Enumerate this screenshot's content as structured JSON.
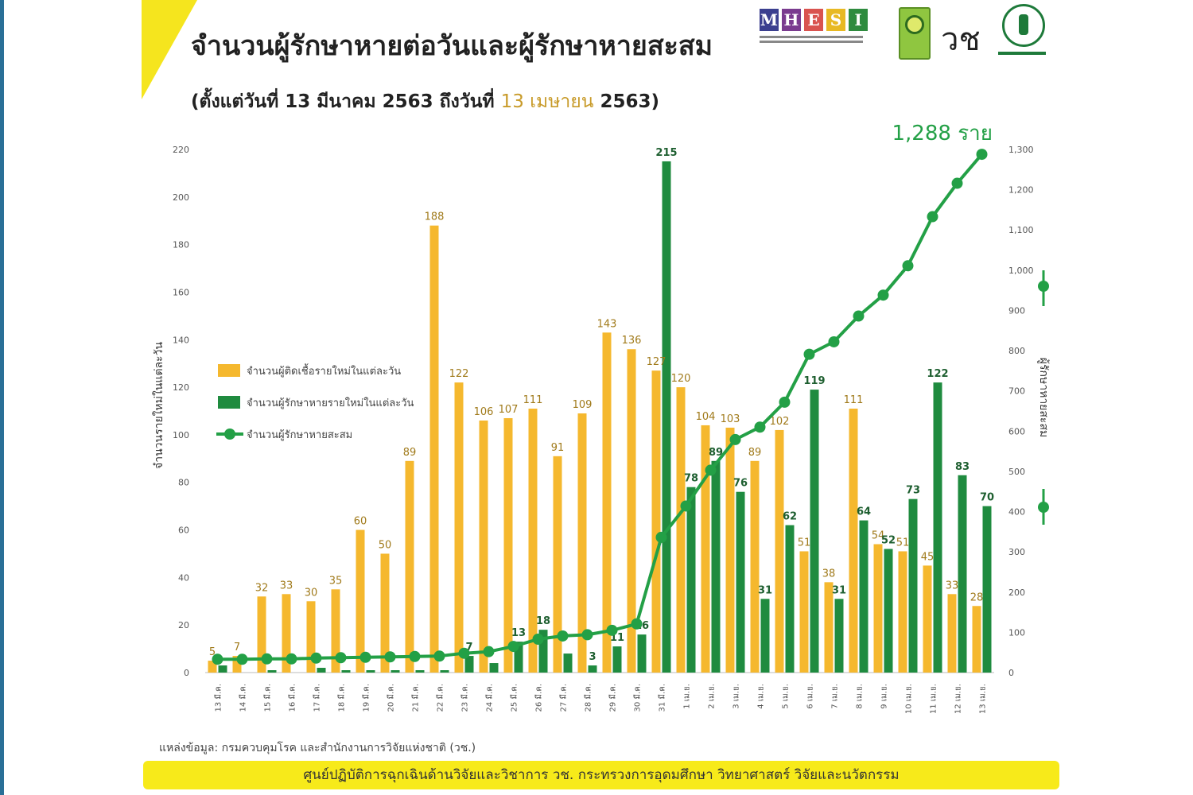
{
  "header": {
    "title": "จำนวนผู้รักษาหายต่อวันและผู้รักษาหายสะสม",
    "subtitle_prefix": "(ตั้งแต่วันที่ 13 มีนาคม 2563 ถึงวันที่",
    "subtitle_highlight": "13 เมษายน",
    "subtitle_suffix": "2563)"
  },
  "logos": {
    "mhesi_letters": [
      "M",
      "H",
      "E",
      "S",
      "I"
    ],
    "mhesi_colors": [
      "#3b3f8f",
      "#7a3b8f",
      "#d9534f",
      "#e8b923",
      "#2e8b3e"
    ],
    "logo3_text": "วช",
    "icons": [
      "mhesi-logo",
      "ministry-emblem-icon",
      "nrct-logo",
      "ddc-logo"
    ]
  },
  "colors": {
    "bar_yellow": "#f5b82e",
    "bar_green": "#1f8b3f",
    "line_green": "#23a046",
    "highlight_text": "#c89b2a"
  },
  "chart_data": {
    "type": "bar",
    "ylabel_left": "จำนวนรายใหม่ในแต่ละวัน",
    "ylabel_right": "ผู้รักษาหายสะสม",
    "ylim_left": [
      0,
      220
    ],
    "yticks_left": [
      0,
      20,
      40,
      60,
      80,
      100,
      120,
      140,
      160,
      180,
      200,
      220
    ],
    "ylim_right": [
      0,
      1300
    ],
    "yticks_right": [
      "0",
      "100",
      "200",
      "300",
      "400",
      "500",
      "600",
      "700",
      "800",
      "900",
      "1,000",
      "1,100",
      "1,200",
      "1,300"
    ],
    "categories": [
      "13 มี.ค.",
      "14 มี.ค.",
      "15 มี.ค.",
      "16 มี.ค.",
      "17 มี.ค.",
      "18 มี.ค.",
      "19 มี.ค.",
      "20 มี.ค.",
      "21 มี.ค.",
      "22 มี.ค.",
      "23 มี.ค.",
      "24 มี.ค.",
      "25 มี.ค.",
      "26 มี.ค.",
      "27 มี.ค.",
      "28 มี.ค.",
      "29 มี.ค.",
      "30 มี.ค.",
      "31 มี.ค.",
      "1 เม.ย.",
      "2 เม.ย.",
      "3 เม.ย.",
      "4 เม.ย.",
      "5 เม.ย.",
      "6 เม.ย.",
      "7 เม.ย.",
      "8 เม.ย.",
      "9 เม.ย.",
      "10 เม.ย.",
      "11 เม.ย.",
      "12 เม.ย.",
      "13 เม.ย."
    ],
    "series": [
      {
        "name": "จำนวนผู้ติดเชื้อรายใหม่ในแต่ละวัน",
        "type": "bar",
        "axis": "left",
        "values": [
          5,
          7,
          32,
          33,
          30,
          35,
          60,
          50,
          89,
          188,
          122,
          106,
          107,
          111,
          91,
          109,
          143,
          136,
          127,
          120,
          104,
          103,
          89,
          102,
          51,
          38,
          111,
          54,
          51,
          45,
          33,
          28
        ],
        "labels": [
          "5",
          "7",
          "32",
          "33",
          "30",
          "35",
          "60",
          "50",
          "89",
          "188",
          "122",
          "106",
          "107",
          "111",
          "91",
          "109",
          "143",
          "136",
          "127",
          "120",
          "104",
          "103",
          "89",
          "102",
          "51",
          "38",
          "111",
          "54",
          "51",
          "45",
          "33",
          "28"
        ]
      },
      {
        "name": "จำนวนผู้รักษาหายรายใหม่ในแต่ละวัน",
        "type": "bar",
        "axis": "left",
        "values": [
          3,
          0,
          1,
          0,
          2,
          1,
          1,
          1,
          1,
          1,
          7,
          4,
          13,
          18,
          8,
          3,
          11,
          16,
          215,
          78,
          89,
          76,
          31,
          62,
          119,
          31,
          64,
          52,
          73,
          122,
          83,
          70
        ],
        "labels": [
          "",
          "",
          "",
          "",
          "",
          "",
          "",
          "",
          "",
          "",
          "7",
          "",
          "13",
          "18",
          "",
          "3",
          "11",
          "16",
          "215",
          "78",
          "89",
          "76",
          "31",
          "62",
          "119",
          "31",
          "64",
          "52",
          "73",
          "122",
          "83",
          "70"
        ]
      },
      {
        "name": "จำนวนผู้รักษาหายสะสม",
        "type": "line",
        "axis": "right",
        "values": [
          33,
          33,
          34,
          34,
          36,
          37,
          38,
          39,
          40,
          41,
          48,
          52,
          65,
          83,
          91,
          94,
          105,
          121,
          336,
          414,
          503,
          579,
          610,
          672,
          791,
          822,
          886,
          938,
          1011,
          1133,
          1216,
          1288
        ]
      }
    ],
    "annotation": "1,288 ราย",
    "legend_position": "left-middle",
    "grid": false
  },
  "footer": {
    "source": "แหล่งข้อมูล: กรมควบคุมโรค และสำนักงานการวิจัยแห่งชาติ (วช.)",
    "banner": "ศูนย์ปฏิบัติการฉุกเฉินด้านวิจัยและวิชาการ   วช.   กระทรวงการอุดมศึกษา วิทยาศาสตร์ วิจัยและนวัตกรรม"
  }
}
